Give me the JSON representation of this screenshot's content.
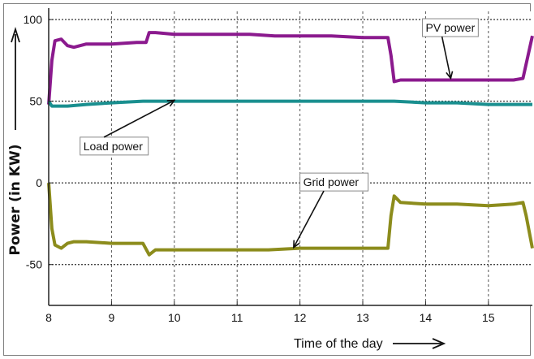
{
  "chart_data": {
    "type": "line",
    "title": "",
    "xlabel": "Time of the day",
    "ylabel": "Power (in KW)",
    "xlim": [
      8,
      15.7
    ],
    "ylim": [
      -75,
      105
    ],
    "x_ticks": [
      8,
      9,
      10,
      11,
      12,
      13,
      14,
      15
    ],
    "y_ticks": [
      -50,
      0,
      50,
      100
    ],
    "grid": true,
    "legend": "none",
    "series": [
      {
        "name": "PV power",
        "color": "#8b1a8e",
        "x": [
          8.0,
          8.05,
          8.1,
          8.2,
          8.3,
          8.4,
          8.5,
          8.6,
          9.0,
          9.4,
          9.55,
          9.6,
          9.7,
          10.0,
          10.4,
          10.8,
          11.2,
          11.6,
          12.0,
          12.5,
          13.0,
          13.4,
          13.45,
          13.5,
          13.6,
          14.0,
          14.5,
          15.0,
          15.4,
          15.55,
          15.7
        ],
        "y": [
          48,
          75,
          87,
          88,
          84,
          83,
          84,
          85,
          85,
          86,
          86,
          92,
          92,
          91,
          91,
          91,
          91,
          90,
          90,
          90,
          89,
          89,
          78,
          62,
          63,
          63,
          63,
          63,
          63,
          64,
          90
        ]
      },
      {
        "name": "Load power",
        "color": "#1a8f8f",
        "x": [
          8.0,
          8.05,
          8.3,
          8.6,
          9.0,
          9.5,
          10.0,
          10.5,
          11.0,
          11.5,
          12.0,
          12.5,
          13.0,
          13.5,
          14.0,
          14.5,
          15.0,
          15.5,
          15.7
        ],
        "y": [
          50,
          47,
          47,
          48,
          49,
          50,
          50,
          50,
          50,
          50,
          50,
          50,
          50,
          50,
          49,
          49,
          48,
          48,
          48
        ]
      },
      {
        "name": "Grid power",
        "color": "#8c8c1c",
        "x": [
          8.0,
          8.05,
          8.1,
          8.2,
          8.3,
          8.4,
          8.6,
          9.0,
          9.2,
          9.5,
          9.6,
          9.7,
          10.0,
          10.5,
          11.0,
          11.5,
          12.0,
          12.5,
          13.0,
          13.4,
          13.45,
          13.5,
          13.6,
          14.0,
          14.5,
          15.0,
          15.4,
          15.55,
          15.6,
          15.7
        ],
        "y": [
          0,
          -28,
          -38,
          -40,
          -37,
          -36,
          -36,
          -37,
          -37,
          -37,
          -44,
          -41,
          -41,
          -41,
          -41,
          -41,
          -40,
          -40,
          -40,
          -40,
          -20,
          -8,
          -12,
          -13,
          -13,
          -14,
          -13,
          -12,
          -20,
          -40
        ]
      }
    ],
    "annotations": [
      {
        "text": "PV power",
        "target_series": "PV power"
      },
      {
        "text": "Load power",
        "target_series": "Load power"
      },
      {
        "text": "Grid power",
        "target_series": "Grid power"
      }
    ]
  }
}
